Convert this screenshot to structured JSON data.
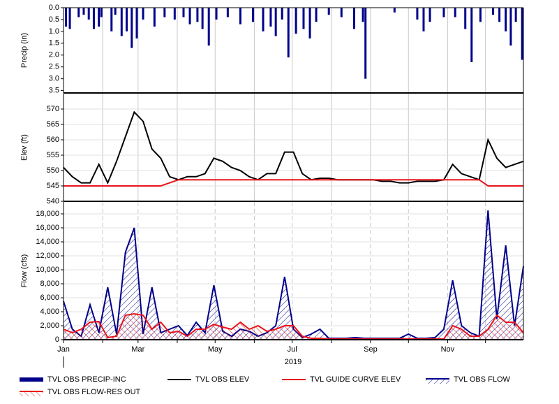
{
  "chart_data": [
    {
      "type": "bar",
      "ylabel": "Precip (in)",
      "inverted": true,
      "xlim": [
        0,
        364
      ],
      "ylim": [
        0,
        3.6
      ],
      "yticks": [
        {
          "value": 0,
          "label": "0.0"
        },
        0.5,
        {
          "value": 1,
          "label": "1.0"
        },
        1.5,
        {
          "value": 2,
          "label": "2.0"
        },
        2.5,
        {
          "value": 3,
          "label": "3.0"
        },
        3.5
      ],
      "series": [
        {
          "name": "TVL OBS PRECIP-INC",
          "color": "#00008b",
          "x": [
            2,
            5,
            12,
            16,
            20,
            24,
            28,
            30,
            38,
            41,
            46,
            50,
            54,
            58,
            63,
            72,
            80,
            88,
            95,
            100,
            106,
            110,
            115,
            121,
            130,
            140,
            150,
            158,
            164,
            168,
            173,
            178,
            184,
            190,
            195,
            200,
            210,
            220,
            230,
            237,
            239,
            262,
            280,
            285,
            290,
            301,
            310,
            318,
            323,
            330,
            340,
            345,
            350,
            354,
            358,
            363
          ],
          "values": [
            0.8,
            0.9,
            0.4,
            0.3,
            0.5,
            0.9,
            0.8,
            0.4,
            1.0,
            0.3,
            1.2,
            1.0,
            1.7,
            1.3,
            0.5,
            0.8,
            0.4,
            0.5,
            0.4,
            0.7,
            0.6,
            0.9,
            1.6,
            0.5,
            0.4,
            0.7,
            0.6,
            1.0,
            0.8,
            1.2,
            0.5,
            2.1,
            1.1,
            0.9,
            1.3,
            0.6,
            0.3,
            0.4,
            0.9,
            0.6,
            3.0,
            0.2,
            0.5,
            1.0,
            0.6,
            0.4,
            0.4,
            0.9,
            2.3,
            0.6,
            0.3,
            0.6,
            1.0,
            1.6,
            0.6,
            2.2
          ]
        }
      ]
    },
    {
      "type": "line",
      "ylabel": "Elev (ft)",
      "xlim": [
        0,
        364
      ],
      "ylim": [
        540,
        575
      ],
      "yticks": [
        540,
        545,
        550,
        555,
        560,
        565,
        570
      ],
      "x": [
        0,
        7,
        14,
        21,
        28,
        35,
        42,
        49,
        56,
        63,
        70,
        77,
        84,
        91,
        98,
        105,
        112,
        119,
        126,
        133,
        140,
        147,
        154,
        161,
        168,
        175,
        182,
        189,
        196,
        203,
        210,
        217,
        224,
        231,
        238,
        245,
        252,
        259,
        266,
        273,
        280,
        287,
        294,
        301,
        308,
        315,
        322,
        329,
        336,
        343,
        350,
        357,
        364
      ],
      "series": [
        {
          "name": "TVL OBS ELEV",
          "color": "#000000",
          "values": [
            551,
            548,
            546,
            546,
            552,
            546,
            553,
            561,
            569,
            566,
            557,
            554,
            548,
            547,
            548,
            548,
            549,
            554,
            553,
            551,
            550,
            548,
            547,
            549,
            549,
            556,
            556,
            549,
            547,
            547.5,
            547.5,
            547,
            547,
            547,
            547,
            547,
            546.5,
            546.5,
            546,
            546,
            546.5,
            546.5,
            546.5,
            547,
            552,
            549,
            548,
            547,
            560,
            554,
            551,
            552,
            553
          ]
        },
        {
          "name": "TVL GUIDE CURVE ELEV",
          "color": "#e8141c",
          "values": [
            545,
            545,
            545,
            545,
            545,
            545,
            545,
            545,
            545,
            545,
            545,
            545,
            546,
            547,
            547,
            547,
            547,
            547,
            547,
            547,
            547,
            547,
            547,
            547,
            547,
            547,
            547,
            547,
            547,
            547,
            547,
            547,
            547,
            547,
            547,
            547,
            547,
            547,
            547,
            547,
            547,
            547,
            547,
            547,
            547,
            547,
            547,
            547,
            545,
            545,
            545,
            545,
            545
          ]
        }
      ]
    },
    {
      "type": "area",
      "ylabel": "Flow (cfs)",
      "xlabel": "2019",
      "xlim": [
        0,
        364
      ],
      "ylim": [
        0,
        19700
      ],
      "yticks": [
        0,
        {
          "value": 2000,
          "label": "2,000"
        },
        {
          "value": 4000,
          "label": "4,000"
        },
        {
          "value": 6000,
          "label": "6,000"
        },
        {
          "value": 8000,
          "label": "8,000"
        },
        {
          "value": 10000,
          "label": "10,000"
        },
        {
          "value": 12000,
          "label": "12,000"
        },
        {
          "value": 14000,
          "label": "14,000"
        },
        {
          "value": 16000,
          "label": "16,000"
        },
        {
          "value": 18000,
          "label": "18,000"
        }
      ],
      "xticks": [
        {
          "value": 0,
          "label": "Jan"
        },
        {
          "value": 31,
          "label": null
        },
        {
          "value": 59,
          "label": "Mar"
        },
        {
          "value": 90,
          "label": null
        },
        {
          "value": 120,
          "label": "May"
        },
        {
          "value": 151,
          "label": null
        },
        {
          "value": 181,
          "label": "Jul"
        },
        {
          "value": 212,
          "label": null
        },
        {
          "value": 243,
          "label": "Sep"
        },
        {
          "value": 273,
          "label": null
        },
        {
          "value": 304,
          "label": "Nov"
        },
        {
          "value": 334,
          "label": null
        }
      ],
      "x": [
        0,
        7,
        14,
        21,
        28,
        35,
        42,
        49,
        56,
        63,
        70,
        77,
        84,
        91,
        98,
        105,
        112,
        119,
        126,
        133,
        140,
        147,
        154,
        161,
        168,
        175,
        182,
        189,
        196,
        203,
        210,
        217,
        224,
        231,
        238,
        245,
        252,
        259,
        266,
        273,
        280,
        287,
        294,
        301,
        308,
        315,
        322,
        329,
        336,
        343,
        350,
        357,
        364
      ],
      "series": [
        {
          "name": "TVL OBS FLOW",
          "color": "#00008b",
          "values": [
            5500,
            1500,
            500,
            5000,
            1000,
            7500,
            800,
            12500,
            16000,
            800,
            7500,
            1000,
            1500,
            2000,
            600,
            2500,
            1000,
            7800,
            1200,
            500,
            1500,
            1200,
            500,
            1000,
            2000,
            9000,
            1500,
            300,
            800,
            1500,
            200,
            200,
            200,
            300,
            200,
            200,
            200,
            200,
            200,
            800,
            200,
            200,
            300,
            1500,
            8500,
            2000,
            1000,
            500,
            18500,
            3000,
            13500,
            2000,
            10500
          ]
        },
        {
          "name": "TVL OBS FLOW-RES OUT",
          "color": "#e8141c",
          "values": [
            1500,
            1000,
            1500,
            2500,
            2600,
            300,
            500,
            3500,
            3700,
            3500,
            1500,
            2500,
            1000,
            1200,
            500,
            1500,
            1500,
            2200,
            1800,
            1500,
            2500,
            1500,
            2000,
            1200,
            1500,
            2000,
            2000,
            500,
            200,
            200,
            100,
            100,
            100,
            100,
            100,
            100,
            100,
            100,
            100,
            100,
            100,
            100,
            100,
            100,
            2000,
            1500,
            500,
            500,
            1500,
            3500,
            2500,
            2500,
            1000
          ]
        }
      ]
    }
  ]
}
